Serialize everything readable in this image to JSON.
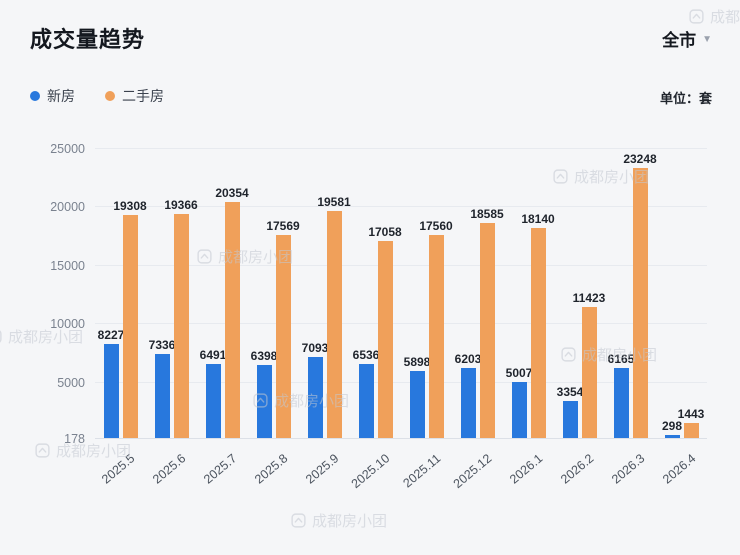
{
  "header": {
    "title": "成交量趋势",
    "region": "全市",
    "caret": "▼",
    "unit": "单位：套"
  },
  "legend": {
    "items": [
      {
        "label": "新房"
      },
      {
        "label": "二手房"
      }
    ]
  },
  "watermark_text": "成都房小团",
  "colors": {
    "new_house_blue": "#2878dd",
    "second_hand_orange": "#f0a05a",
    "background": "#f5f6f8",
    "value_label": "#1f242c",
    "axis_label": "#7a828f"
  },
  "chart_data": {
    "type": "bar",
    "title": "成交量趋势",
    "unit": "套",
    "categories": [
      "2025.5",
      "2025.6",
      "2025.7",
      "2025.8",
      "2025.9",
      "2025.10",
      "2025.11",
      "2025.12",
      "2026.1",
      "2026.2",
      "2026.3",
      "2026.4"
    ],
    "series": [
      {
        "name": "新房",
        "color": "#2878dd",
        "values": [
          8227,
          7336,
          6491,
          6398,
          7093,
          6536,
          5898,
          6203,
          5007,
          3354,
          6165,
          298
        ]
      },
      {
        "name": "二手房",
        "color": "#f0a05a",
        "values": [
          19308,
          19366,
          20354,
          17569,
          19581,
          17058,
          17560,
          18585,
          18140,
          11423,
          23248,
          1443
        ]
      }
    ],
    "y_ticks": [
      178,
      5000,
      10000,
      15000,
      20000,
      25000
    ],
    "ylim": [
      178,
      25000
    ],
    "grid": true,
    "legend_position": "top-left",
    "value_labels": true
  }
}
